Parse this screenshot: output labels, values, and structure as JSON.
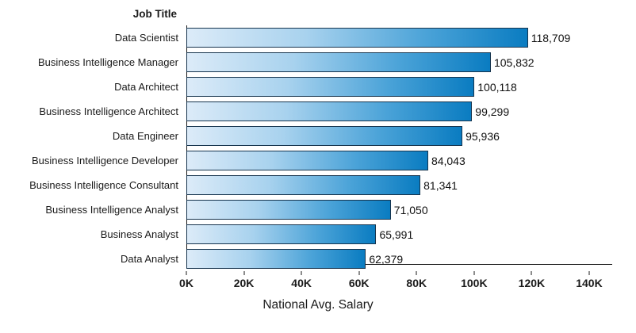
{
  "chart_data": {
    "type": "bar",
    "orientation": "horizontal",
    "title": "",
    "y_axis_title": "Job Title",
    "xlabel": "National Avg. Salary",
    "categories": [
      "Data Scientist",
      "Business Intelligence Manager",
      "Data Architect",
      "Business Intelligence Architect",
      "Data Engineer",
      "Business Intelligence Developer",
      "Business Intelligence Consultant",
      "Business Intelligence Analyst",
      "Business Analyst",
      "Data Analyst"
    ],
    "values": [
      118709,
      105832,
      100118,
      99299,
      95936,
      84043,
      81341,
      71050,
      65991,
      62379
    ],
    "value_labels": [
      "118,709",
      "105,832",
      "100,118",
      "99,299",
      "95,936",
      "84,043",
      "81,341",
      "71,050",
      "65,991",
      "62,379"
    ],
    "xlim": [
      0,
      140000
    ],
    "scale_max": 148000,
    "xticks": [
      {
        "value": 0,
        "label": "0K"
      },
      {
        "value": 20000,
        "label": "20K"
      },
      {
        "value": 40000,
        "label": "40K"
      },
      {
        "value": 60000,
        "label": "60K"
      },
      {
        "value": 80000,
        "label": "80K"
      },
      {
        "value": 100000,
        "label": "100K"
      },
      {
        "value": 120000,
        "label": "120K"
      },
      {
        "value": 140000,
        "label": "140K"
      }
    ],
    "grid": false,
    "legend": "none",
    "bar_gradient_start": "#dcebf8",
    "bar_gradient_end": "#0a7cc1",
    "bar_border_color": "#16344e"
  }
}
